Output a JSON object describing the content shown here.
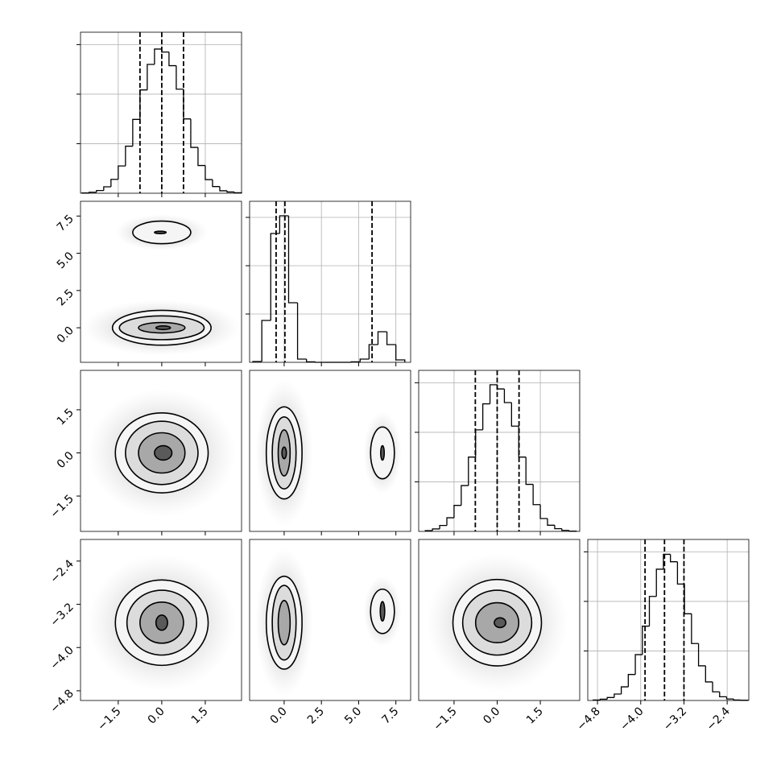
{
  "chart_data": {
    "type": "corner",
    "grid": true,
    "variables": [
      {
        "lim": [
          -2.8,
          2.75
        ],
        "ticks": [
          {
            "value": -1.5,
            "label": "−1.5"
          },
          {
            "value": 0,
            "label": "0.0"
          },
          1.5
        ]
      },
      {
        "lim": [
          -2.32,
          8.49
        ],
        "ticks": [
          {
            "value": 0,
            "label": "0.0"
          },
          2.5,
          {
            "value": 5,
            "label": "5.0"
          },
          7.5
        ]
      },
      {
        "lim": [
          -2.73,
          2.87
        ],
        "ticks": [
          {
            "value": -1.5,
            "label": "−1.5"
          },
          {
            "value": 0,
            "label": "0.0"
          },
          1.5
        ]
      },
      {
        "lim": [
          -4.98,
          -2.0
        ],
        "ticks": [
          {
            "value": -4.8,
            "label": "−4.8"
          },
          {
            "value": -4.0,
            "label": "−4.0"
          },
          {
            "value": -3.2,
            "label": "−3.2"
          },
          {
            "value": -2.4,
            "label": "−2.4"
          }
        ]
      }
    ],
    "diagonal": [
      {
        "bins": [
          -2.75,
          -2.5,
          -2.25,
          -2,
          -1.75,
          -1.5,
          -1.25,
          -1,
          -0.75,
          -0.5,
          -0.25,
          0,
          0.25,
          0.5,
          0.75,
          1,
          1.25,
          1.5,
          1.75,
          2,
          2.25,
          2.5,
          2.75
        ],
        "counts": [
          1,
          4,
          11,
          26,
          56,
          110,
          190,
          298,
          417,
          520,
          582,
          570,
          515,
          420,
          300,
          185,
          112,
          55,
          27,
          10,
          5,
          2
        ],
        "ylim": [
          0,
          650
        ],
        "yticks": [
          200,
          400,
          600
        ],
        "quantiles": [
          -0.75,
          0,
          0.75
        ]
      },
      {
        "bins": [
          -2.1,
          -1.5,
          -0.9,
          -0.3,
          0.3,
          0.9,
          1.5,
          2.1,
          2.7,
          3.3,
          3.9,
          4.5,
          5.1,
          5.7,
          6.3,
          6.9,
          7.5,
          8.1
        ],
        "counts": [
          5,
          260,
          800,
          910,
          370,
          20,
          3,
          0,
          0,
          0,
          0,
          3,
          20,
          110,
          190,
          110,
          15
        ],
        "ylim": [
          0,
          1000
        ],
        "yticks": [
          300,
          600,
          900
        ],
        "quantiles": [
          -0.54,
          0.05,
          5.9
        ]
      },
      {
        "bins": [
          -2.5,
          -2.25,
          -2,
          -1.75,
          -1.5,
          -1.25,
          -1,
          -0.75,
          -0.5,
          -0.25,
          0,
          0.25,
          0.5,
          0.75,
          1,
          1.25,
          1.5,
          1.75,
          2,
          2.25,
          2.5,
          2.75
        ],
        "counts": [
          3,
          10,
          24,
          55,
          105,
          185,
          300,
          410,
          515,
          592,
          575,
          520,
          425,
          300,
          190,
          108,
          52,
          25,
          11,
          4,
          1
        ],
        "ylim": [
          0,
          650
        ],
        "yticks": [
          200,
          400,
          600
        ],
        "quantiles": [
          -0.76,
          0,
          0.76
        ]
      },
      {
        "bins": [
          -4.88,
          -4.75,
          -4.62,
          -4.49,
          -4.36,
          -4.23,
          -4.1,
          -3.97,
          -3.84,
          -3.71,
          -3.58,
          -3.45,
          -3.32,
          -3.19,
          -3.06,
          -2.93,
          -2.8,
          -2.67,
          -2.54,
          -2.41,
          -2.28,
          -2.15,
          -2.02
        ],
        "counts": [
          2,
          5,
          12,
          26,
          55,
          105,
          185,
          300,
          420,
          530,
          590,
          560,
          470,
          350,
          230,
          140,
          75,
          35,
          15,
          6,
          2,
          1
        ],
        "ylim": [
          0,
          650
        ],
        "yticks": [
          200,
          400,
          600
        ],
        "quantiles": [
          -3.92,
          -3.56,
          -3.2
        ]
      }
    ],
    "pairs": [
      {
        "row": 1,
        "col": 0,
        "contours": [
          {
            "level": 0,
            "cx": 0,
            "cy": 0,
            "rx": 1.7,
            "ry": 1.17
          },
          {
            "level": 1,
            "cx": 0,
            "cy": 0,
            "rx": 1.46,
            "ry": 0.8
          },
          {
            "level": 2,
            "cx": 0,
            "cy": 0,
            "rx": 0.8,
            "ry": 0.35
          },
          {
            "level": 3,
            "cx": 0.05,
            "cy": 0,
            "rx": 0.25,
            "ry": 0.12
          },
          {
            "level": 0,
            "cx": 0,
            "cy": 6.4,
            "rx": 1.0,
            "ry": 0.76
          },
          {
            "level": 3,
            "cx": -0.05,
            "cy": 6.4,
            "rx": 0.2,
            "ry": 0.08
          }
        ]
      },
      {
        "row": 2,
        "col": 0,
        "contours": [
          {
            "level": 0,
            "cx": 0,
            "cy": 0,
            "rx": 1.6,
            "ry": 1.39
          },
          {
            "level": 1,
            "cx": 0,
            "cy": 0,
            "rx": 1.25,
            "ry": 1.1
          },
          {
            "level": 2,
            "cx": 0,
            "cy": 0,
            "rx": 0.8,
            "ry": 0.7
          },
          {
            "level": 3,
            "cx": 0.05,
            "cy": 0,
            "rx": 0.3,
            "ry": 0.25
          }
        ]
      },
      {
        "row": 2,
        "col": 1,
        "contours": [
          {
            "level": 0,
            "cx": 0,
            "cy": 0,
            "rx": 1.2,
            "ry": 1.6
          },
          {
            "level": 1,
            "cx": 0,
            "cy": 0,
            "rx": 0.8,
            "ry": 1.25
          },
          {
            "level": 2,
            "cx": 0,
            "cy": 0,
            "rx": 0.4,
            "ry": 0.8
          },
          {
            "level": 3,
            "cx": 0,
            "cy": 0,
            "rx": 0.15,
            "ry": 0.2
          },
          {
            "level": 0,
            "cx": 6.6,
            "cy": 0,
            "rx": 0.8,
            "ry": 0.9
          },
          {
            "level": 3,
            "cx": 6.6,
            "cy": 0,
            "rx": 0.12,
            "ry": 0.25
          }
        ]
      },
      {
        "row": 3,
        "col": 0,
        "contours": [
          {
            "level": 0,
            "cx": 0,
            "cy": -3.54,
            "rx": 1.6,
            "ry": 0.79
          },
          {
            "level": 1,
            "cx": 0,
            "cy": -3.54,
            "rx": 1.2,
            "ry": 0.6
          },
          {
            "level": 2,
            "cx": 0,
            "cy": -3.54,
            "rx": 0.75,
            "ry": 0.38
          },
          {
            "level": 3,
            "cx": 0,
            "cy": -3.54,
            "rx": 0.2,
            "ry": 0.14
          }
        ]
      },
      {
        "row": 3,
        "col": 1,
        "contours": [
          {
            "level": 0,
            "cx": 0,
            "cy": -3.54,
            "rx": 1.2,
            "ry": 0.86
          },
          {
            "level": 1,
            "cx": 0,
            "cy": -3.54,
            "rx": 0.8,
            "ry": 0.69
          },
          {
            "level": 2,
            "cx": 0,
            "cy": -3.54,
            "rx": 0.4,
            "ry": 0.41
          },
          {
            "level": 0,
            "cx": 6.6,
            "cy": -3.33,
            "rx": 0.8,
            "ry": 0.41
          },
          {
            "level": 3,
            "cx": 6.6,
            "cy": -3.33,
            "rx": 0.15,
            "ry": 0.18
          }
        ]
      },
      {
        "row": 3,
        "col": 2,
        "contours": [
          {
            "level": 0,
            "cx": 0,
            "cy": -3.54,
            "rx": 1.54,
            "ry": 0.8
          },
          {
            "level": 1,
            "cx": 0,
            "cy": -3.54,
            "rx": 1.2,
            "ry": 0.6
          },
          {
            "level": 2,
            "cx": 0,
            "cy": -3.54,
            "rx": 0.75,
            "ry": 0.37
          },
          {
            "level": 3,
            "cx": 0.1,
            "cy": -3.54,
            "rx": 0.2,
            "ry": 0.09
          }
        ]
      }
    ]
  }
}
